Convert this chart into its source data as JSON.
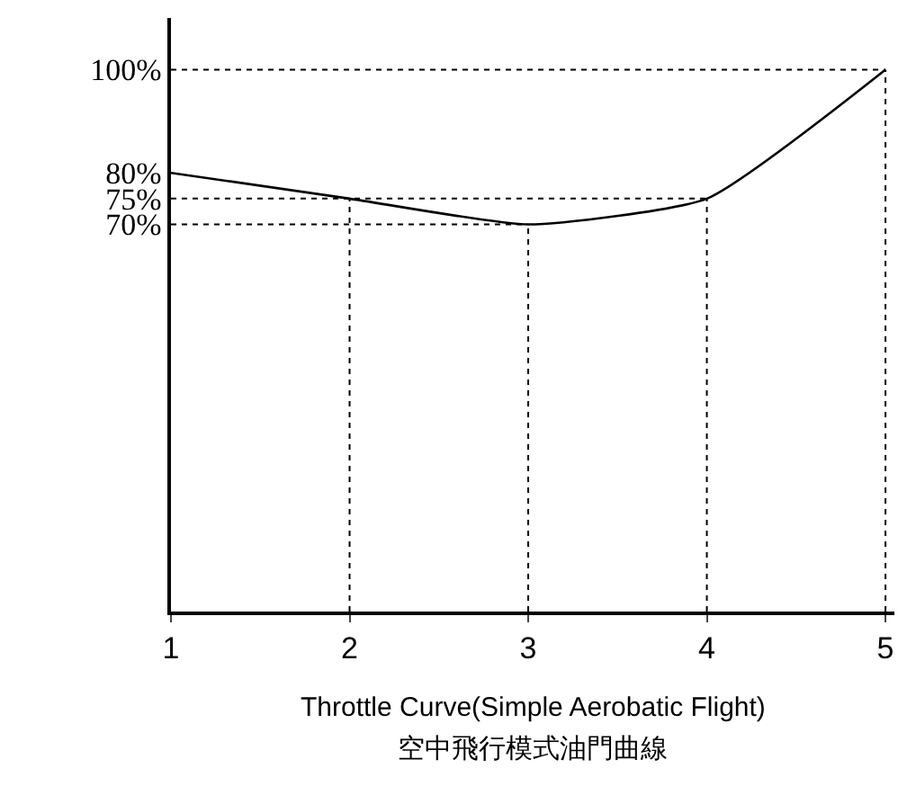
{
  "chart_data": {
    "type": "line",
    "title": "Throttle Curve(Simple Aerobatic Flight)",
    "subtitle": "空中飛行模式油門曲線",
    "x": [
      1,
      2,
      3,
      4,
      5
    ],
    "series": [
      {
        "color": "#000000",
        "values": [
          80,
          75,
          70,
          75,
          100
        ]
      }
    ],
    "xlim": [
      1,
      5.05
    ],
    "xticks": [
      1,
      2,
      3,
      4,
      5
    ],
    "ylim": [
      -5,
      110
    ],
    "yticks": [
      {
        "value": 70,
        "label": "70%"
      },
      {
        "value": 75,
        "label": "75%"
      },
      {
        "value": 80,
        "label": "80%"
      },
      {
        "value": 100,
        "label": "100%"
      }
    ],
    "ref_lines": [
      {
        "axis": "x",
        "value": 2,
        "line_style": "dotted"
      },
      {
        "axis": "x",
        "value": 3,
        "line_style": "dotted"
      },
      {
        "axis": "x",
        "value": 4,
        "line_style": "dotted"
      },
      {
        "axis": "x",
        "value": 5,
        "line_style": "dotted"
      },
      {
        "axis": "y",
        "value": 70,
        "line_style": "dotted"
      },
      {
        "axis": "y",
        "value": 75,
        "line_style": "dotted"
      },
      {
        "axis": "y",
        "value": 100,
        "line_style": "dotted"
      }
    ],
    "grid": false,
    "marker": "none",
    "line_style": "solid"
  }
}
